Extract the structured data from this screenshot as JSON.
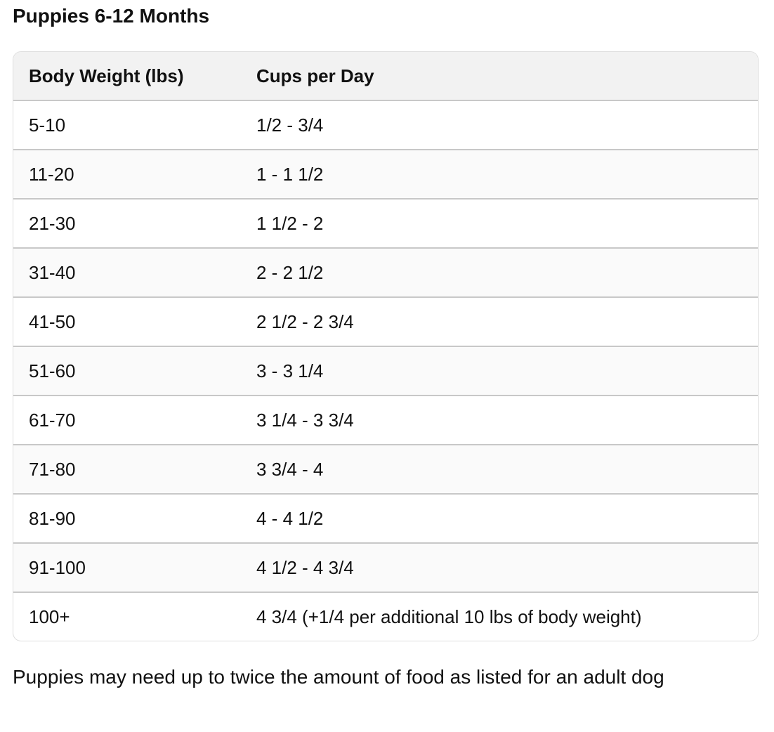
{
  "title": "Puppies 6-12 Months",
  "table": {
    "headers": [
      "Body Weight (lbs)",
      "Cups per Day"
    ],
    "rows": [
      [
        "5-10",
        "1/2 - 3/4"
      ],
      [
        "11-20",
        "1 - 1 1/2"
      ],
      [
        "21-30",
        "1 1/2 - 2"
      ],
      [
        "31-40",
        "2 - 2 1/2"
      ],
      [
        "41-50",
        "2 1/2 - 2 3/4"
      ],
      [
        "51-60",
        "3 - 3 1/4"
      ],
      [
        "61-70",
        "3 1/4 - 3 3/4"
      ],
      [
        "71-80",
        "3 3/4 - 4"
      ],
      [
        "81-90",
        "4 - 4 1/2"
      ],
      [
        "91-100",
        "4 1/2 - 4 3/4"
      ],
      [
        "100+",
        "4 3/4 (+1/4 per additional 10 lbs of body weight)"
      ]
    ]
  },
  "note": "Puppies may need up to twice the amount of food as listed for an adult dog"
}
